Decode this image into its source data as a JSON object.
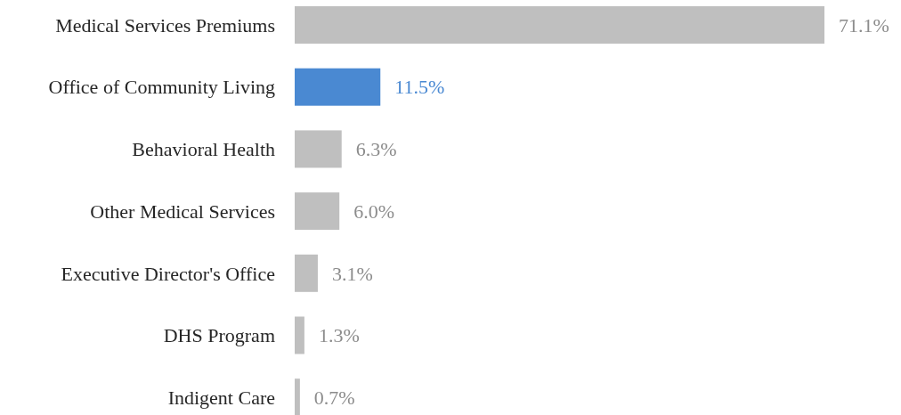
{
  "chart_data": {
    "type": "bar",
    "orientation": "horizontal",
    "categories": [
      "Medical Services Premiums",
      "Office of Community Living",
      "Behavioral Health",
      "Other Medical Services",
      "Executive Director's Office",
      "DHS Program",
      "Indigent Care"
    ],
    "values": [
      71.1,
      11.5,
      6.3,
      6.0,
      3.1,
      1.3,
      0.7
    ],
    "colors": [
      "#bfbfbf",
      "#4a89d2",
      "#bfbfbf",
      "#bfbfbf",
      "#bfbfbf",
      "#bfbfbf",
      "#bfbfbf"
    ],
    "value_labels": [
      "71.1%",
      "11.5%",
      "6.3%",
      "6.0%",
      "3.1%",
      "1.3%",
      "0.7%"
    ]
  }
}
